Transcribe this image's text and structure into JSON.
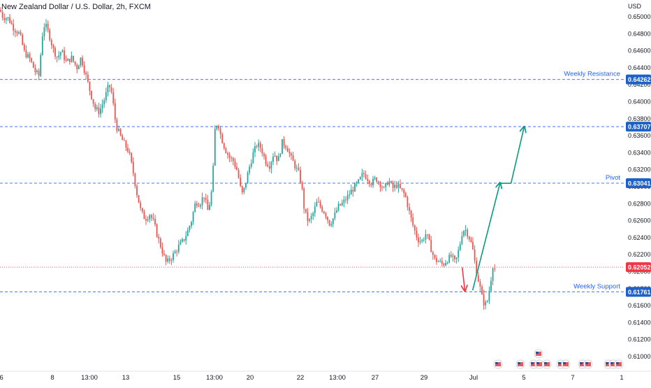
{
  "header": {
    "title": "New Zealand Dollar / U.S. Dollar, 2h, FXCM"
  },
  "colors": {
    "up": "#26a69a",
    "down": "#ef5350",
    "level_line": "#2962ff",
    "level_badge": "#1e62c8",
    "current_price_badge": "#f23645",
    "arrow_up": "#089981",
    "arrow_down": "#f23645",
    "axis_text": "#131722",
    "label_text": "#2962ff"
  },
  "chart_data": {
    "type": "candlestick",
    "currency_label": "USD",
    "y_ticks": [
      "0.65000",
      "0.64800",
      "0.64600",
      "0.64400",
      "0.64200",
      "0.64000",
      "0.63800",
      "0.63600",
      "0.63400",
      "0.63200",
      "0.63000",
      "0.62800",
      "0.62600",
      "0.62400",
      "0.62200",
      "0.62000",
      "0.61800",
      "0.61600",
      "0.61400",
      "0.61200",
      "0.61000"
    ],
    "x_ticks": [
      "6",
      "8",
      "13:00",
      "13",
      "15",
      "13:00",
      "20",
      "22",
      "13:00",
      "27",
      "29",
      "Jul",
      "5",
      "7",
      "1"
    ],
    "levels": [
      {
        "label": "Weekly Resistance",
        "price": 0.64262,
        "badge": "0.64262",
        "style": "dashed",
        "show_label": true
      },
      {
        "label": "",
        "price": 0.63707,
        "badge": "0.63707",
        "style": "dashed",
        "show_label": false
      },
      {
        "label": "Pivot",
        "price": 0.63041,
        "badge": "0.63041",
        "style": "dashed",
        "show_label": true
      },
      {
        "label": "Weekly Support",
        "price": 0.61761,
        "badge": "0.61761",
        "style": "dashed",
        "show_label": true
      }
    ],
    "current_price": {
      "price": 0.62052,
      "badge": "0.62052"
    },
    "price_path": [
      [
        0,
        0.6508
      ],
      [
        4,
        0.65
      ],
      [
        12,
        0.6498
      ],
      [
        20,
        0.6486
      ],
      [
        28,
        0.648
      ],
      [
        35,
        0.6458
      ],
      [
        43,
        0.645
      ],
      [
        50,
        0.6436
      ],
      [
        56,
        0.643
      ],
      [
        60,
        0.6476
      ],
      [
        64,
        0.6492
      ],
      [
        70,
        0.648
      ],
      [
        76,
        0.6462
      ],
      [
        82,
        0.6452
      ],
      [
        88,
        0.646
      ],
      [
        95,
        0.6446
      ],
      [
        102,
        0.6452
      ],
      [
        110,
        0.644
      ],
      [
        116,
        0.6452
      ],
      [
        120,
        0.644
      ],
      [
        128,
        0.6415
      ],
      [
        136,
        0.6392
      ],
      [
        142,
        0.6388
      ],
      [
        150,
        0.6404
      ],
      [
        156,
        0.642
      ],
      [
        160,
        0.641
      ],
      [
        166,
        0.6372
      ],
      [
        172,
        0.636
      ],
      [
        178,
        0.635
      ],
      [
        184,
        0.6342
      ],
      [
        190,
        0.632
      ],
      [
        196,
        0.6292
      ],
      [
        202,
        0.627
      ],
      [
        208,
        0.6262
      ],
      [
        214,
        0.6268
      ],
      [
        220,
        0.6258
      ],
      [
        226,
        0.624
      ],
      [
        232,
        0.6225
      ],
      [
        238,
        0.621
      ],
      [
        244,
        0.6215
      ],
      [
        250,
        0.6222
      ],
      [
        256,
        0.623
      ],
      [
        262,
        0.6236
      ],
      [
        268,
        0.6246
      ],
      [
        274,
        0.626
      ],
      [
        280,
        0.6282
      ],
      [
        286,
        0.628
      ],
      [
        292,
        0.629
      ],
      [
        298,
        0.627
      ],
      [
        304,
        0.63
      ],
      [
        308,
        0.637
      ],
      [
        312,
        0.6376
      ],
      [
        316,
        0.636
      ],
      [
        322,
        0.6345
      ],
      [
        328,
        0.6335
      ],
      [
        334,
        0.633
      ],
      [
        340,
        0.6318
      ],
      [
        346,
        0.629
      ],
      [
        350,
        0.6298
      ],
      [
        356,
        0.632
      ],
      [
        362,
        0.6338
      ],
      [
        368,
        0.635
      ],
      [
        374,
        0.6345
      ],
      [
        380,
        0.633
      ],
      [
        386,
        0.6325
      ],
      [
        392,
        0.634
      ],
      [
        398,
        0.633
      ],
      [
        404,
        0.6352
      ],
      [
        410,
        0.6348
      ],
      [
        416,
        0.6335
      ],
      [
        422,
        0.6325
      ],
      [
        428,
        0.6315
      ],
      [
        432,
        0.63
      ],
      [
        436,
        0.627
      ],
      [
        442,
        0.6258
      ],
      [
        448,
        0.6268
      ],
      [
        454,
        0.6282
      ],
      [
        460,
        0.6275
      ],
      [
        466,
        0.6268
      ],
      [
        472,
        0.6256
      ],
      [
        478,
        0.6264
      ],
      [
        484,
        0.6276
      ],
      [
        490,
        0.628
      ],
      [
        496,
        0.6286
      ],
      [
        502,
        0.6294
      ],
      [
        508,
        0.63
      ],
      [
        514,
        0.6306
      ],
      [
        520,
        0.6316
      ],
      [
        526,
        0.631
      ],
      [
        532,
        0.6304
      ],
      [
        538,
        0.631
      ],
      [
        544,
        0.6304
      ],
      [
        550,
        0.6296
      ],
      [
        556,
        0.6308
      ],
      [
        562,
        0.6298
      ],
      [
        568,
        0.6302
      ],
      [
        574,
        0.6296
      ],
      [
        580,
        0.629
      ],
      [
        586,
        0.627
      ],
      [
        592,
        0.6252
      ],
      [
        598,
        0.6238
      ],
      [
        604,
        0.6236
      ],
      [
        610,
        0.6245
      ],
      [
        616,
        0.623
      ],
      [
        622,
        0.6214
      ],
      [
        628,
        0.6212
      ],
      [
        634,
        0.6208
      ],
      [
        640,
        0.6214
      ],
      [
        646,
        0.6218
      ],
      [
        652,
        0.621
      ],
      [
        658,
        0.623
      ],
      [
        662,
        0.6248
      ],
      [
        666,
        0.625
      ],
      [
        670,
        0.6244
      ],
      [
        676,
        0.623
      ],
      [
        682,
        0.62
      ],
      [
        686,
        0.6186
      ],
      [
        690,
        0.617
      ],
      [
        694,
        0.616
      ],
      [
        698,
        0.6166
      ],
      [
        702,
        0.6186
      ],
      [
        706,
        0.621
      ],
      [
        710,
        0.6198
      ]
    ],
    "projection": {
      "down_arrow": {
        "from": [
          0.71,
          0.6205
        ],
        "to": [
          0.714,
          0.6178
        ]
      },
      "up_path": [
        [
          0.726,
          0.6178
        ],
        [
          0.768,
          0.6304
        ],
        [
          0.785,
          0.6304
        ],
        [
          0.805,
          0.637
        ]
      ]
    }
  }
}
